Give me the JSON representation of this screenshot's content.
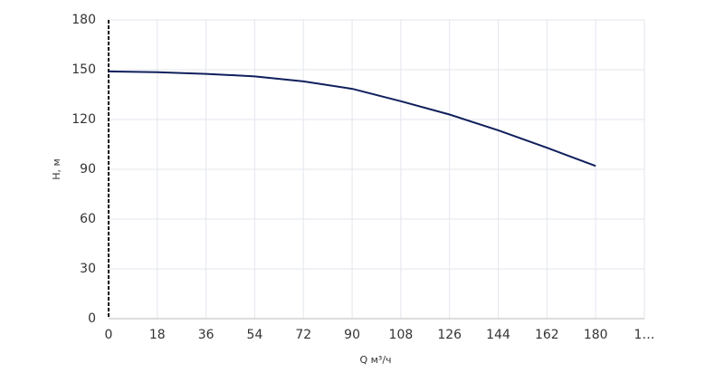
{
  "chart_data": {
    "type": "line",
    "x_label": "Q м³/ч",
    "y_label": "H, м",
    "x": [
      0,
      18,
      36,
      54,
      72,
      90,
      108,
      126,
      144,
      162,
      180
    ],
    "series": [
      {
        "name": "H",
        "color": "#0f1f5c",
        "values": [
          149,
          148.5,
          147.5,
          146,
          143,
          138.5,
          131,
          123,
          113.5,
          103,
          92
        ]
      }
    ],
    "xlim": [
      0,
      198
    ],
    "xticks": [
      0,
      18,
      36,
      54,
      72,
      90,
      108,
      126,
      144,
      162,
      180,
      {
        "value": 198,
        "label": "1…"
      }
    ],
    "ylim": [
      0,
      180
    ],
    "yticks": [
      0,
      30,
      60,
      90,
      120,
      150,
      180
    ],
    "grid": true
  }
}
